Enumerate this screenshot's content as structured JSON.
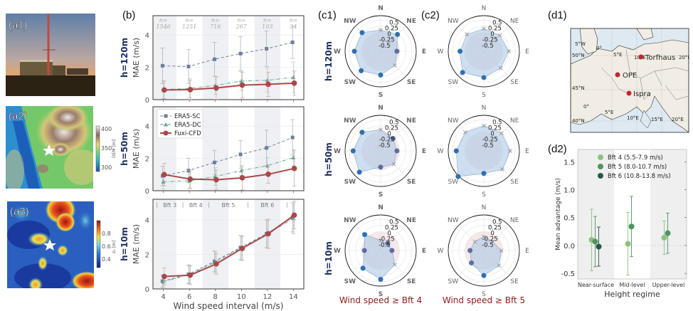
{
  "panel_labels": {
    "a1": "(a1)",
    "a2": "(a2)",
    "a3": "(a3)",
    "b": "(b)",
    "c1": "(c1)",
    "c2": "(c2)",
    "d1": "(d1)",
    "d2": "(d2)"
  },
  "colorbars": {
    "a2": {
      "label": "DEM [m]",
      "ticks": [
        "400",
        "350",
        "300"
      ]
    },
    "a3": {
      "label": "z₀ [m]",
      "ticks": [
        "0.8",
        "0.6",
        "0.4"
      ]
    }
  },
  "height_labels": [
    "h=120m",
    "h=50m",
    "h=10m"
  ],
  "captions": {
    "c1": "Wind speed ≥ Bft 4",
    "c2": "Wind speed ≥ Bft 5"
  },
  "map": {
    "sites": [
      {
        "name": "Torfhaus",
        "lon": 10.6,
        "lat": 51.8
      },
      {
        "name": "OPE",
        "lon": 5.5,
        "lat": 48.6
      },
      {
        "name": "Ispra",
        "lon": 8.6,
        "lat": 45.8
      }
    ],
    "grid_labels": [
      "5°W",
      "0°",
      "5°E",
      "10°E",
      "15°E",
      "20°E",
      "50°N",
      "45°N",
      "40°N",
      "0°",
      "5°E",
      "10°E",
      "15°E"
    ],
    "site_color": "#c0282f"
  },
  "chart_data": [
    {
      "id": "b",
      "type": "line",
      "xlabel": "Wind speed interval (m/s)",
      "ylabel": "MAE (m/s)",
      "x": [
        4,
        6,
        8,
        10,
        12,
        14
      ],
      "xlim": [
        3.2,
        14.8
      ],
      "ylim": [
        0,
        5.2
      ],
      "yticks": [
        0,
        2,
        4
      ],
      "xticks": [
        4,
        6,
        8,
        10,
        12,
        14
      ],
      "colors": {
        "ERA5-SC": "#6f7f99",
        "ERA5-DC": "#6aa192",
        "Fuxi-CFD": "#a84848"
      },
      "legend": {
        "entries": [
          "ERA5-SC",
          "ERA5-DC",
          "Fuxi-CFD"
        ],
        "placement": "top-left (h=50m panel)"
      },
      "n_counts": [
        "n=1546",
        "n=1251",
        "n=716",
        "n=267",
        "n=103",
        "n=34"
      ],
      "bft_bands": [
        "Bft 3",
        "Bft 4",
        "Bft 5",
        "Bft 6"
      ],
      "panels": [
        {
          "height": "h=120m",
          "series": [
            {
              "name": "ERA5-SC",
              "values": [
                2.1,
                2.05,
                2.5,
                2.85,
                3.15,
                3.55
              ],
              "err": [
                1.1,
                1.05,
                1.05,
                1.05,
                1.1,
                1.0
              ]
            },
            {
              "name": "ERA5-DC",
              "values": [
                0.62,
                0.7,
                0.88,
                1.15,
                1.2,
                1.38
              ],
              "err": [
                0.55,
                0.6,
                0.55,
                0.6,
                0.75,
                0.95
              ]
            },
            {
              "name": "Fuxi-CFD",
              "values": [
                0.6,
                0.62,
                0.72,
                0.9,
                0.95,
                1.02
              ],
              "err": [
                0.55,
                0.6,
                0.7,
                0.8,
                0.75,
                0.75
              ]
            }
          ]
        },
        {
          "height": "h=50m",
          "series": [
            {
              "name": "ERA5-SC",
              "values": [
                0.92,
                1.25,
                1.75,
                2.25,
                2.65,
                3.3
              ],
              "err": [
                0.6,
                0.75,
                0.75,
                0.85,
                1.1,
                1.1
              ]
            },
            {
              "name": "ERA5-DC",
              "values": [
                0.55,
                0.62,
                0.88,
                1.25,
                1.55,
                2.05
              ],
              "err": [
                0.45,
                0.5,
                0.55,
                0.3,
                0.5,
                0.5
              ]
            },
            {
              "name": "Fuxi-CFD",
              "values": [
                1.0,
                0.72,
                0.68,
                0.8,
                1.02,
                1.38
              ],
              "err": [
                0.7,
                0.55,
                0.6,
                0.75,
                0.55,
                1.1
              ]
            }
          ]
        },
        {
          "height": "h=10m",
          "series": [
            {
              "name": "ERA5-SC",
              "values": [
                0.45,
                0.85,
                1.6,
                2.4,
                3.2,
                4.15
              ],
              "err": [
                0.35,
                0.55,
                0.6,
                0.7,
                0.8,
                0.85
              ]
            },
            {
              "name": "ERA5-DC",
              "values": [
                0.42,
                0.83,
                1.55,
                2.38,
                3.18,
                4.1
              ],
              "err": [
                0.35,
                0.5,
                0.6,
                0.7,
                0.8,
                0.9
              ]
            },
            {
              "name": "Fuxi-CFD",
              "values": [
                0.72,
                0.8,
                1.45,
                2.35,
                3.2,
                4.28
              ],
              "err": [
                0.5,
                0.55,
                0.6,
                0.7,
                0.85,
                0.8
              ]
            }
          ]
        }
      ]
    },
    {
      "id": "c",
      "type": "radar",
      "directions": [
        "N",
        "NE",
        "E",
        "SE",
        "S",
        "SW",
        "W",
        "NW"
      ],
      "rticks": [
        "0.5",
        "0.25",
        "0",
        "-0.25",
        "-0.5"
      ],
      "rlim": [
        -0.75,
        0.6
      ],
      "columns": [
        {
          "caption": "Wind speed ≥ Bft 4",
          "rows": [
            {
              "height": "h=120m",
              "values": [
                0.1,
                0.2,
                -0.1,
                0.05,
                0.2,
                0.35,
                0.3,
                0.3
              ],
              "markers": [
                "x",
                "dot",
                "dot",
                "x",
                "dot",
                "dot",
                "dot",
                "dot"
              ]
            },
            {
              "height": "h=50m",
              "values": [
                0.1,
                -0.05,
                -0.1,
                0.0,
                -0.1,
                0.45,
                0.35,
                0.3
              ],
              "markers": [
                "x",
                "dot",
                "dot",
                "x",
                "dot",
                "dot",
                "dot",
                "dot"
              ]
            },
            {
              "height": "h=10m",
              "values": [
                -0.35,
                -0.35,
                -0.3,
                0.05,
                0.4,
                0.25,
                -0.1,
                0.15
              ],
              "markers": [
                "x",
                "dot",
                "dot",
                "x",
                "dot",
                "dot",
                "dot",
                "dot"
              ]
            }
          ]
        },
        {
          "caption": "Wind speed ≥ Bft 5",
          "rows": [
            {
              "height": "h=120m",
              "values": [
                0.15,
                0.15,
                0.25,
                0.2,
                0.3,
                0.45,
                0.2,
                0.2
              ],
              "markers": [
                "x",
                "x",
                "x",
                "x",
                "dot",
                "dot",
                "dot",
                "x"
              ]
            },
            {
              "height": "h=50m",
              "values": [
                0.25,
                0.25,
                0.3,
                0.3,
                0.15,
                0.7,
                0.35,
                0.3
              ],
              "markers": [
                "x",
                "x",
                "x",
                "x",
                "dot",
                "dot",
                "dot",
                "x"
              ]
            },
            {
              "height": "h=10m",
              "values": [
                -0.2,
                -0.25,
                -0.05,
                0.1,
                0.25,
                -0.05,
                -0.2,
                -0.25
              ],
              "markers": [
                "x",
                "x",
                "x",
                "x",
                "dot",
                "dot",
                "dot",
                "x"
              ]
            }
          ]
        }
      ]
    },
    {
      "id": "d2",
      "type": "scatter",
      "xlabel": "Height regime",
      "ylabel": "Mean advantage (m/s)",
      "categories": [
        "Near-surface",
        "Mid-level",
        "Upper-level"
      ],
      "ylim": [
        -0.6,
        1.72
      ],
      "yticks": [
        "-0.5",
        "0.0",
        "0.5",
        "1.0",
        "1.5"
      ],
      "legend_placement": "top",
      "series": [
        {
          "name": "Bft 4 (5.5-7.9 m/s)",
          "color": "#8fc07f",
          "values": [
            0.1,
            0.03,
            0.14
          ],
          "err": [
            0.55,
            0.56,
            0.3
          ]
        },
        {
          "name": "Bft 5 (8.0-10.7 m/s)",
          "color": "#4f9460",
          "values": [
            0.07,
            0.34,
            0.22
          ],
          "err": [
            0.45,
            0.54,
            0.36
          ]
        },
        {
          "name": "Bft 6 (10.8-13.8 m/s)",
          "color": "#245a42",
          "values": [
            -0.02,
            null,
            null
          ],
          "err": [
            0.35,
            null,
            null
          ]
        }
      ]
    }
  ]
}
